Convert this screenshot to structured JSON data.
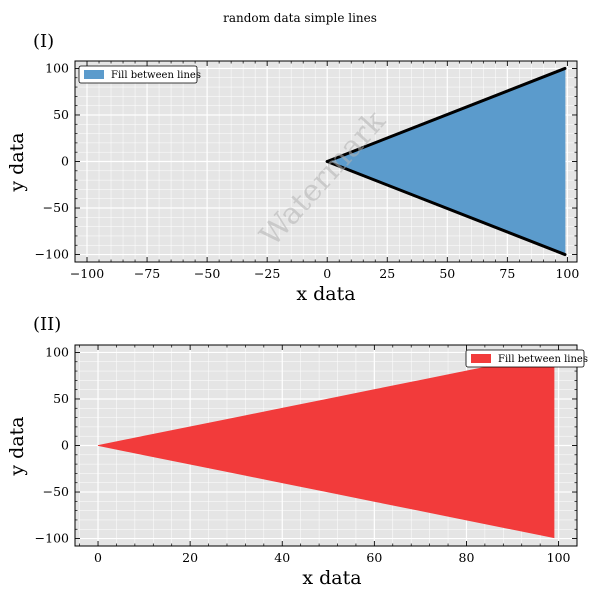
{
  "figure": {
    "suptitle": "random data simple lines",
    "watermark": "Watermark"
  },
  "chart_data": [
    {
      "type": "area",
      "panel_label": "(I)",
      "xlabel": "x data",
      "ylabel": "y data",
      "xlim": [
        -105,
        104
      ],
      "ylim": [
        -108,
        108
      ],
      "xticks": [
        -100,
        -75,
        -50,
        -25,
        0,
        25,
        50,
        75,
        100
      ],
      "xtick_labels": [
        "−100",
        "−75",
        "−50",
        "−25",
        "0",
        "25",
        "50",
        "75",
        "100"
      ],
      "yticks": [
        -100,
        -50,
        0,
        50,
        100
      ],
      "ytick_labels": [
        "−100",
        "−50",
        "0",
        "50",
        "100"
      ],
      "grid": true,
      "legend": {
        "placement": "top-left",
        "entries": [
          {
            "label": "Fill between lines",
            "color": "#5b9bcc"
          }
        ]
      },
      "series": [
        {
          "name": "Fill between lines",
          "fill_color": "#5b9bcc",
          "line_color": "#000000",
          "upper_end": 100,
          "lower_end": -100
        }
      ],
      "x": [
        0,
        10,
        20,
        30,
        40,
        50,
        60,
        70,
        80,
        90,
        99
      ],
      "upper": [
        0,
        10,
        20,
        30,
        40,
        50,
        60,
        70,
        80,
        90,
        99
      ],
      "lower": [
        0,
        -10,
        -20,
        -30,
        -40,
        -50,
        -60,
        -70,
        -80,
        -90,
        -99
      ],
      "boundary_lines": true
    },
    {
      "type": "area",
      "panel_label": "(II)",
      "xlabel": "x data",
      "ylabel": "y data",
      "xlim": [
        -5,
        104
      ],
      "ylim": [
        -108,
        108
      ],
      "xticks": [
        0,
        20,
        40,
        60,
        80,
        100
      ],
      "xtick_labels": [
        "0",
        "20",
        "40",
        "60",
        "80",
        "100"
      ],
      "yticks": [
        -100,
        -50,
        0,
        50,
        100
      ],
      "ytick_labels": [
        "−100",
        "−50",
        "0",
        "50",
        "100"
      ],
      "grid": true,
      "legend": {
        "placement": "top-right",
        "entries": [
          {
            "label": "Fill between lines",
            "color": "#f23b3b"
          }
        ]
      },
      "series": [
        {
          "name": "Fill between lines",
          "fill_color": "#f23b3b"
        }
      ],
      "x": [
        0,
        10,
        20,
        30,
        40,
        50,
        60,
        70,
        80,
        90,
        99
      ],
      "upper": [
        0,
        10,
        20,
        30,
        40,
        50,
        60,
        70,
        80,
        90,
        99
      ],
      "lower": [
        0,
        -10,
        -20,
        -30,
        -40,
        -50,
        -60,
        -70,
        -80,
        -90,
        -99
      ],
      "boundary_lines": false
    }
  ]
}
